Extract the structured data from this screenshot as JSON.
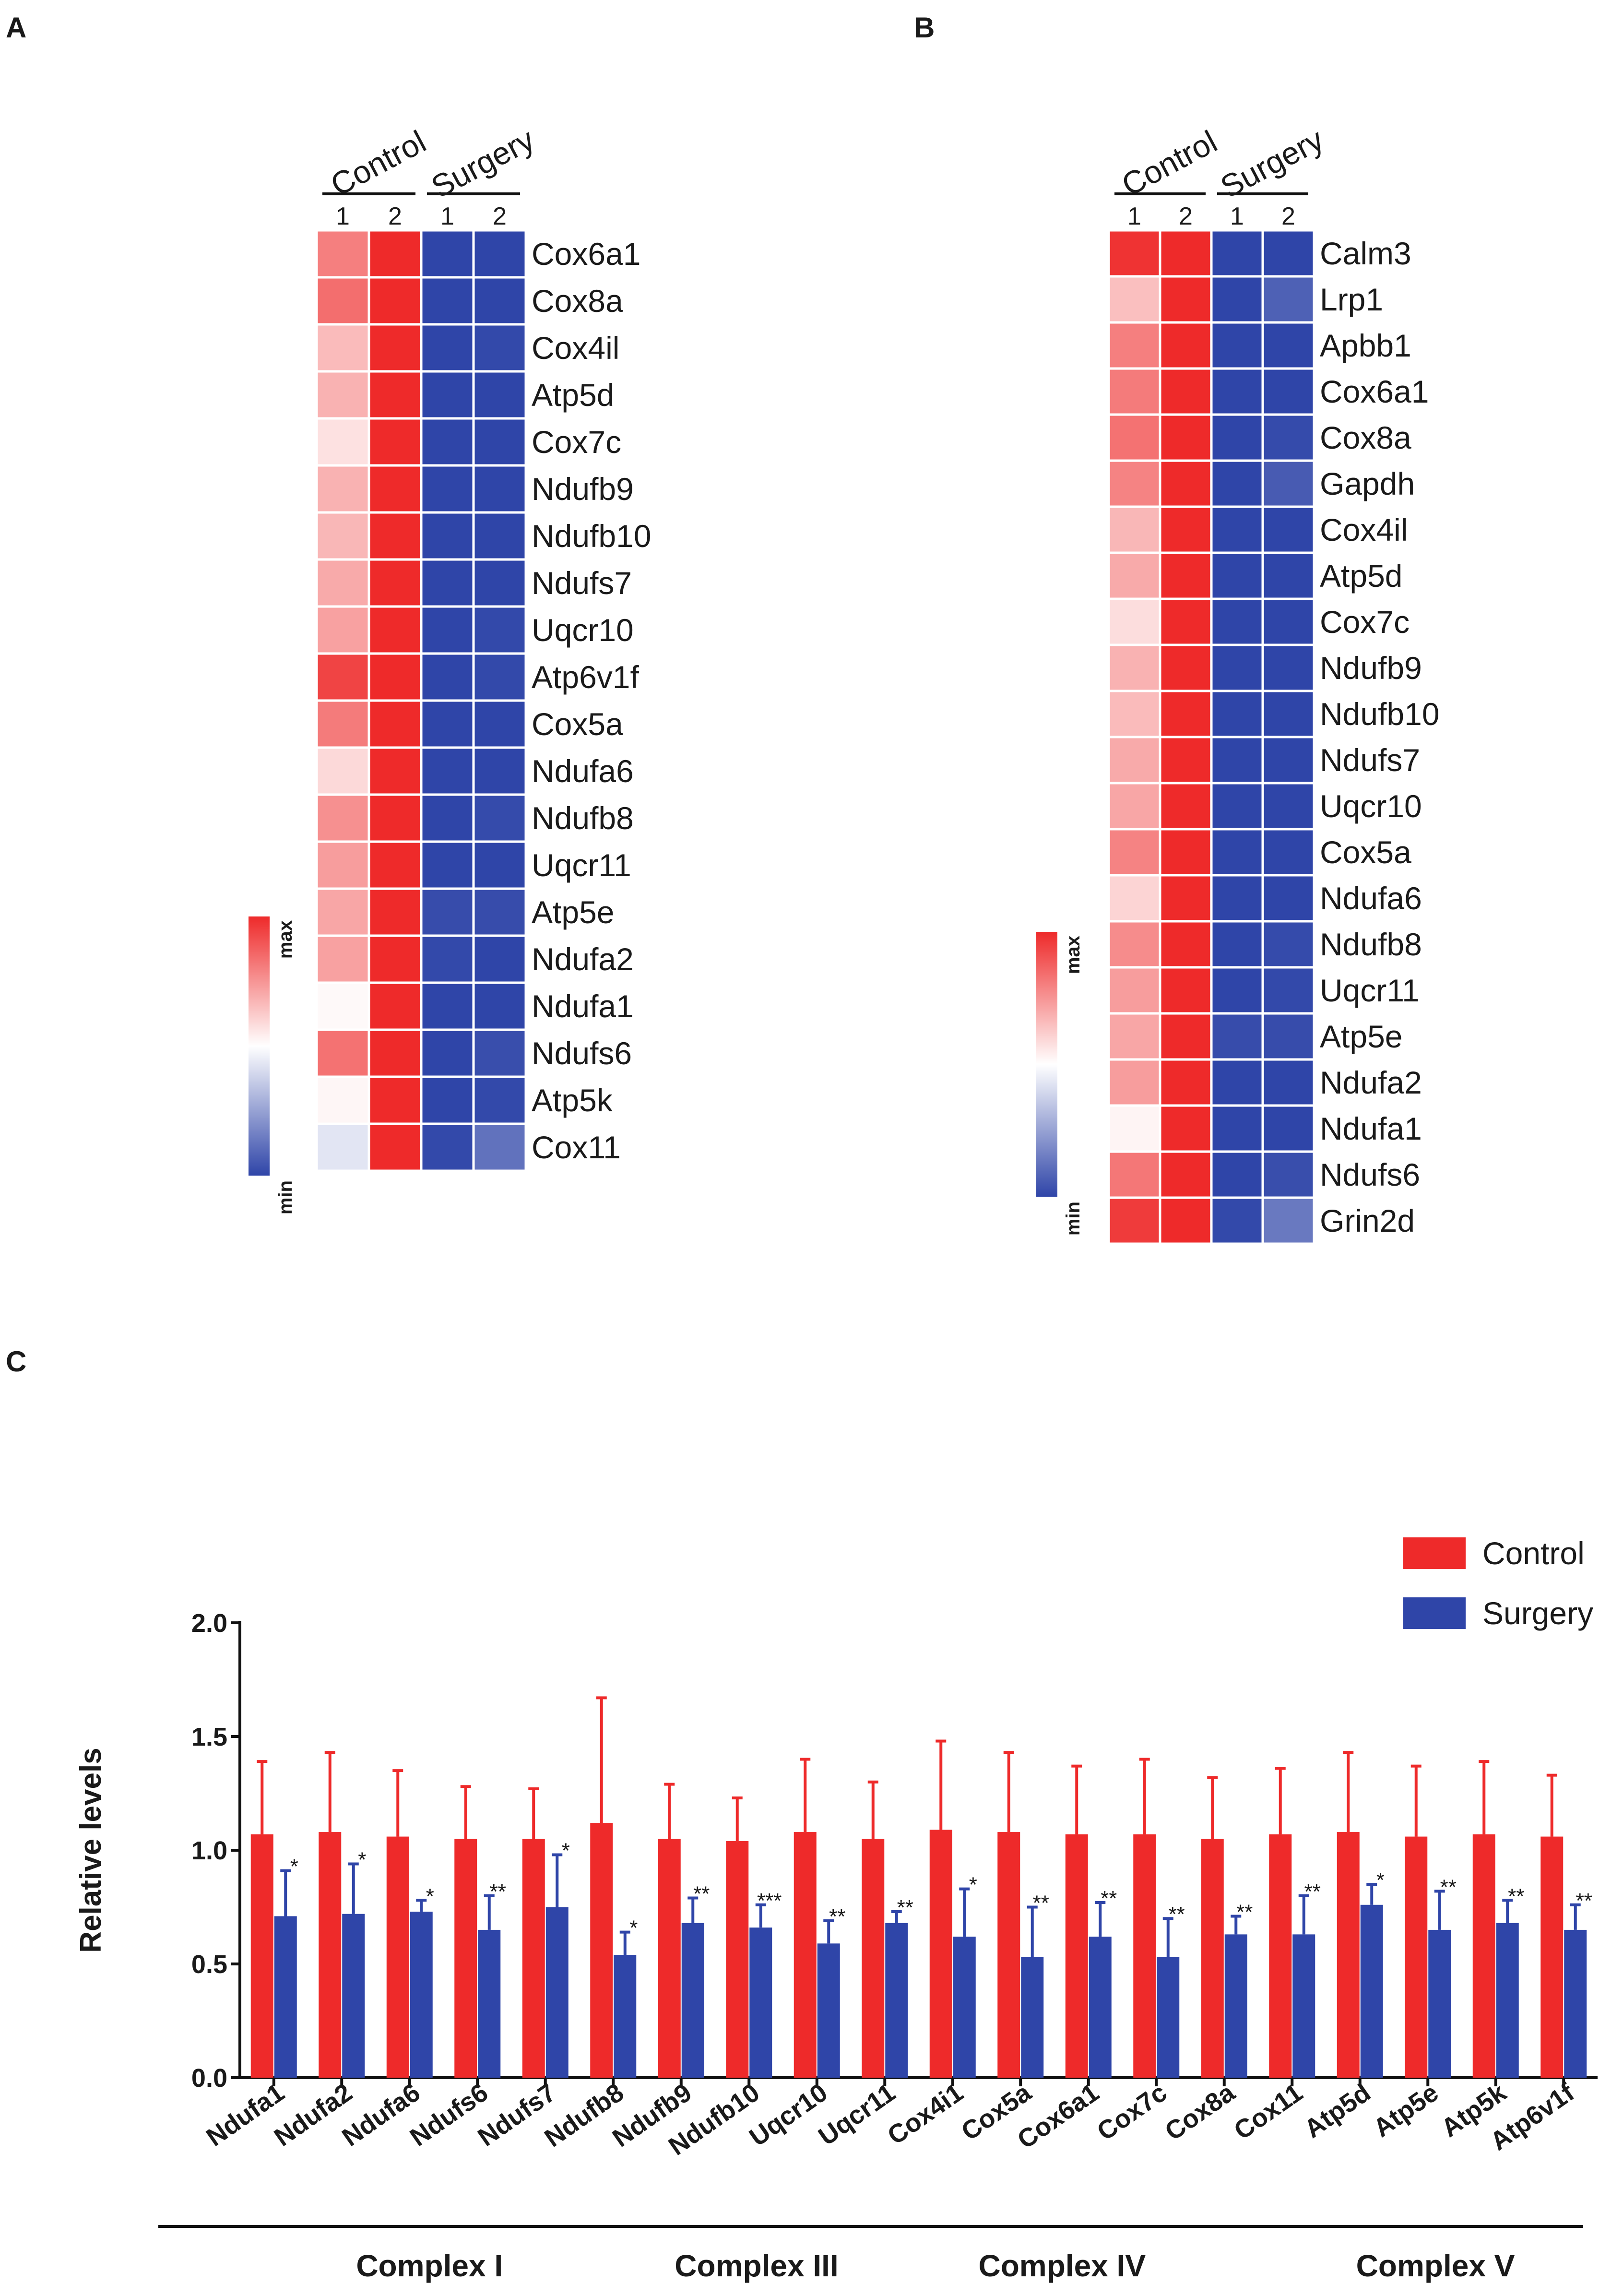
{
  "panels": {
    "a": "A",
    "b": "B",
    "c": "C"
  },
  "heatmap_legend": {
    "max": "max",
    "min": "min"
  },
  "colors": {
    "control": "#ee2a2a",
    "surgery": "#2f45a8",
    "mid": "#ffffff"
  },
  "chart_data": [
    {
      "type": "heatmap",
      "panel": "A",
      "groups": [
        "Control",
        "Surgery"
      ],
      "columns": [
        "1",
        "2",
        "1",
        "2"
      ],
      "rows": [
        "Cox6a1",
        "Cox8a",
        "Cox4il",
        "Atp5d",
        "Cox7c",
        "Ndufb9",
        "Ndufb10",
        "Ndufs7",
        "Uqcr10",
        "Atp6v1f",
        "Cox5a",
        "Ndufa6",
        "Ndufb8",
        "Uqcr11",
        "Atp5e",
        "Ndufa2",
        "Ndufa1",
        "Ndufs6",
        "Atp5k",
        "Cox11"
      ],
      "values": [
        [
          0.6,
          1,
          -1,
          -1
        ],
        [
          0.68,
          1,
          -1,
          -1
        ],
        [
          0.32,
          1,
          -1,
          -0.98
        ],
        [
          0.36,
          1,
          -1,
          -1
        ],
        [
          0.14,
          1,
          -1,
          -1
        ],
        [
          0.36,
          1,
          -1,
          -1
        ],
        [
          0.34,
          1,
          -1,
          -1
        ],
        [
          0.4,
          1,
          -1,
          -1
        ],
        [
          0.44,
          1,
          -1,
          -0.98
        ],
        [
          0.88,
          1,
          -1,
          -0.98
        ],
        [
          0.62,
          1,
          -1,
          -1
        ],
        [
          0.18,
          1,
          -1,
          -1
        ],
        [
          0.52,
          1,
          -1,
          -0.97
        ],
        [
          0.46,
          1,
          -1,
          -1
        ],
        [
          0.42,
          1,
          -0.96,
          -0.96
        ],
        [
          0.44,
          1,
          -0.98,
          -1
        ],
        [
          0.03,
          1,
          -1,
          -1
        ],
        [
          0.66,
          1,
          -1,
          -0.95
        ],
        [
          0.04,
          1,
          -1,
          -0.98
        ],
        [
          -0.14,
          1,
          -0.98,
          -0.76
        ]
      ],
      "scale": {
        "min_label": "min",
        "max_label": "max"
      }
    },
    {
      "type": "heatmap",
      "panel": "B",
      "groups": [
        "Control",
        "Surgery"
      ],
      "columns": [
        "1",
        "2",
        "1",
        "2"
      ],
      "rows": [
        "Calm3",
        "Lrp1",
        "Apbb1",
        "Cox6a1",
        "Cox8a",
        "Gapdh",
        "Cox4il",
        "Atp5d",
        "Cox7c",
        "Ndufb9",
        "Ndufb10",
        "Ndufs7",
        "Uqcr10",
        "Cox5a",
        "Ndufa6",
        "Ndufb8",
        "Uqcr11",
        "Atp5e",
        "Ndufa2",
        "Ndufa1",
        "Ndufs6",
        "Grin2d"
      ],
      "values": [
        [
          0.96,
          1,
          -1,
          -1
        ],
        [
          0.3,
          1,
          -1,
          -0.85
        ],
        [
          0.6,
          1,
          -1,
          -1
        ],
        [
          0.62,
          1,
          -1,
          -1
        ],
        [
          0.66,
          1,
          -1,
          -0.97
        ],
        [
          0.58,
          1,
          -1,
          -0.88
        ],
        [
          0.34,
          1,
          -1,
          -1
        ],
        [
          0.4,
          1,
          -1,
          -1
        ],
        [
          0.16,
          1,
          -1,
          -1
        ],
        [
          0.36,
          1,
          -1,
          -1
        ],
        [
          0.32,
          1,
          -1,
          -1
        ],
        [
          0.4,
          1,
          -1,
          -1
        ],
        [
          0.42,
          1,
          -1,
          -1
        ],
        [
          0.58,
          1,
          -1,
          -1
        ],
        [
          0.2,
          1,
          -1,
          -1
        ],
        [
          0.54,
          1,
          -1,
          -0.97
        ],
        [
          0.46,
          1,
          -1,
          -0.98
        ],
        [
          0.42,
          1,
          -0.96,
          -0.96
        ],
        [
          0.46,
          1,
          -1,
          -1
        ],
        [
          0.05,
          1,
          -1,
          -1
        ],
        [
          0.64,
          1,
          -1,
          -0.95
        ],
        [
          0.92,
          1,
          -0.98,
          -0.72
        ]
      ],
      "scale": {
        "min_label": "min",
        "max_label": "max"
      }
    },
    {
      "type": "bar",
      "panel": "C",
      "ylabel": "Relative levels",
      "ylim": [
        0,
        2.0
      ],
      "yticks": [
        "0.0",
        "0.5",
        "1.0",
        "1.5",
        "2.0"
      ],
      "categories": [
        "Ndufa1",
        "Ndufa2",
        "Ndufa6",
        "Ndufs6",
        "Ndufs7",
        "Ndufb8",
        "Ndufb9",
        "Ndufb10",
        "Uqcr10",
        "Uqcr11",
        "Cox4i1",
        "Cox5a",
        "Cox6a1",
        "Cox7c",
        "Cox8a",
        "Cox11",
        "Atp5d",
        "Atp5e",
        "Atp5k",
        "Atp6v1f"
      ],
      "series": [
        {
          "name": "Control",
          "values": [
            1.07,
            1.08,
            1.06,
            1.05,
            1.05,
            1.12,
            1.05,
            1.04,
            1.08,
            1.05,
            1.09,
            1.08,
            1.07,
            1.07,
            1.05,
            1.07,
            1.08,
            1.06,
            1.07,
            1.06
          ],
          "error": [
            0.32,
            0.35,
            0.29,
            0.23,
            0.22,
            0.55,
            0.24,
            0.19,
            0.32,
            0.25,
            0.39,
            0.35,
            0.3,
            0.33,
            0.27,
            0.29,
            0.35,
            0.31,
            0.32,
            0.27
          ]
        },
        {
          "name": "Surgery",
          "values": [
            0.71,
            0.72,
            0.73,
            0.65,
            0.75,
            0.54,
            0.68,
            0.66,
            0.59,
            0.68,
            0.62,
            0.53,
            0.62,
            0.53,
            0.63,
            0.63,
            0.76,
            0.65,
            0.68,
            0.65
          ],
          "error": [
            0.2,
            0.22,
            0.05,
            0.15,
            0.23,
            0.1,
            0.11,
            0.1,
            0.1,
            0.05,
            0.21,
            0.22,
            0.15,
            0.17,
            0.08,
            0.17,
            0.09,
            0.17,
            0.1,
            0.11
          ]
        }
      ],
      "significance": [
        "*",
        "*",
        "*",
        "**",
        "*",
        "*",
        "**",
        "***",
        "**",
        "**",
        "*",
        "**",
        "**",
        "**",
        "**",
        "**",
        "*",
        "**",
        "**",
        "**"
      ],
      "complexes": [
        {
          "label": "Complex I",
          "from": 0,
          "to": 6
        },
        {
          "label": "Complex III",
          "from": 7,
          "to": 8
        },
        {
          "label": "Complex IV",
          "from": 9,
          "to": 15
        },
        {
          "label": "Complex V",
          "from": 16,
          "to": 19
        }
      ],
      "legend": [
        "Control",
        "Surgery"
      ]
    }
  ]
}
